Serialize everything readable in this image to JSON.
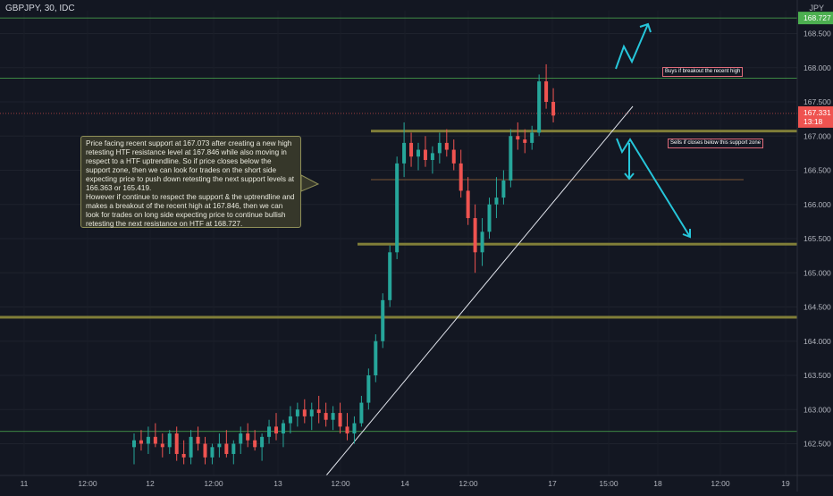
{
  "header": {
    "symbol": "GBPJPY, 30, IDC",
    "currency": "JPY"
  },
  "annotation": {
    "paragraph_1": "Price facing recent support at 167.073 after creating a new high retesting HTF resistance level at 167.846 while also moving in respect to a HTF uptrendline. So if price closes below the support zone, then we can look for trades on the short side expecting price to push down retesting the next support levels at 166.363 or 165.419.",
    "paragraph_2": "However if continue to respect the support & the uptrendline and makes a breakout of the recent high at 167.846, then we can look for trades on long side expecting price to continue bullish retesting the next resistance on HTF at 168.727."
  },
  "notes": {
    "buy": "Buys if breakout the recent high",
    "sell": "Sells if closes below this support zone"
  },
  "price_labels": {
    "resistance_label": "168.727",
    "current_price": "167.331",
    "countdown": "13:18"
  },
  "colors": {
    "background": "#131722",
    "bull": "#26a69a",
    "bear": "#ef5350",
    "accent_arrow": "#26c6da",
    "level_line": "#4caf50",
    "support_zone": "#8d8a3b",
    "price_line": "#ef5350"
  },
  "chart_data": {
    "type": "candlestick",
    "y_axis": {
      "ticks": [
        "168.500",
        "168.000",
        "167.500",
        "167.000",
        "166.500",
        "166.000",
        "165.500",
        "165.000",
        "164.500",
        "164.000",
        "163.500",
        "163.000",
        "162.500"
      ],
      "range": [
        162.2,
        168.95
      ]
    },
    "x_axis": {
      "ticks": [
        "11",
        "12:00",
        "12",
        "12:00",
        "13",
        "12:00",
        "14",
        "12:00",
        "17",
        "15:00",
        "18",
        "12:00",
        "19"
      ]
    },
    "levels": [
      {
        "name": "htf-resistance",
        "price": 168.727,
        "style": "line"
      },
      {
        "name": "recent-high-resistance",
        "price": 167.846,
        "style": "line"
      },
      {
        "name": "current-price",
        "price": 167.331,
        "style": "dotted"
      },
      {
        "name": "support",
        "price": 167.073,
        "style": "zone"
      },
      {
        "name": "support-2",
        "price": 166.363,
        "style": "thin"
      },
      {
        "name": "support-3",
        "price": 165.419,
        "style": "zone"
      },
      {
        "name": "lower-zone",
        "price": 164.35,
        "style": "zone"
      },
      {
        "name": "lower-level",
        "price": 162.68,
        "style": "line"
      }
    ],
    "trendline": {
      "from": [
        0.0,
        162.2
      ],
      "to": [
        0.78,
        167.55
      ]
    },
    "candles": [
      {
        "t": 0.0,
        "o": 162.45,
        "h": 162.65,
        "l": 162.2,
        "c": 162.55
      },
      {
        "t": 0.015,
        "o": 162.55,
        "h": 162.7,
        "l": 162.4,
        "c": 162.5
      },
      {
        "t": 0.03,
        "o": 162.5,
        "h": 162.75,
        "l": 162.35,
        "c": 162.6
      },
      {
        "t": 0.045,
        "o": 162.6,
        "h": 162.8,
        "l": 162.45,
        "c": 162.5
      },
      {
        "t": 0.06,
        "o": 162.5,
        "h": 162.65,
        "l": 162.3,
        "c": 162.45
      },
      {
        "t": 0.075,
        "o": 162.45,
        "h": 162.7,
        "l": 162.35,
        "c": 162.65
      },
      {
        "t": 0.09,
        "o": 162.65,
        "h": 162.75,
        "l": 162.25,
        "c": 162.35
      },
      {
        "t": 0.105,
        "o": 162.35,
        "h": 162.55,
        "l": 162.2,
        "c": 162.3
      },
      {
        "t": 0.12,
        "o": 162.3,
        "h": 162.7,
        "l": 162.2,
        "c": 162.6
      },
      {
        "t": 0.135,
        "o": 162.6,
        "h": 162.75,
        "l": 162.4,
        "c": 162.5
      },
      {
        "t": 0.15,
        "o": 162.5,
        "h": 162.6,
        "l": 162.2,
        "c": 162.3
      },
      {
        "t": 0.165,
        "o": 162.3,
        "h": 162.5,
        "l": 162.2,
        "c": 162.45
      },
      {
        "t": 0.18,
        "o": 162.45,
        "h": 162.65,
        "l": 162.3,
        "c": 162.5
      },
      {
        "t": 0.195,
        "o": 162.5,
        "h": 162.7,
        "l": 162.3,
        "c": 162.35
      },
      {
        "t": 0.21,
        "o": 162.35,
        "h": 162.55,
        "l": 162.2,
        "c": 162.5
      },
      {
        "t": 0.225,
        "o": 162.5,
        "h": 162.75,
        "l": 162.35,
        "c": 162.65
      },
      {
        "t": 0.24,
        "o": 162.65,
        "h": 162.8,
        "l": 162.45,
        "c": 162.55
      },
      {
        "t": 0.255,
        "o": 162.55,
        "h": 162.7,
        "l": 162.4,
        "c": 162.45
      },
      {
        "t": 0.27,
        "o": 162.45,
        "h": 162.65,
        "l": 162.25,
        "c": 162.6
      },
      {
        "t": 0.285,
        "o": 162.6,
        "h": 162.85,
        "l": 162.5,
        "c": 162.75
      },
      {
        "t": 0.3,
        "o": 162.75,
        "h": 162.95,
        "l": 162.55,
        "c": 162.65
      },
      {
        "t": 0.315,
        "o": 162.65,
        "h": 162.85,
        "l": 162.45,
        "c": 162.8
      },
      {
        "t": 0.33,
        "o": 162.8,
        "h": 163.05,
        "l": 162.65,
        "c": 162.9
      },
      {
        "t": 0.345,
        "o": 162.9,
        "h": 163.1,
        "l": 162.75,
        "c": 163.0
      },
      {
        "t": 0.36,
        "o": 163.0,
        "h": 163.15,
        "l": 162.8,
        "c": 162.9
      },
      {
        "t": 0.375,
        "o": 162.9,
        "h": 163.1,
        "l": 162.7,
        "c": 163.0
      },
      {
        "t": 0.39,
        "o": 163.0,
        "h": 163.2,
        "l": 162.8,
        "c": 162.95
      },
      {
        "t": 0.405,
        "o": 162.95,
        "h": 163.1,
        "l": 162.75,
        "c": 162.85
      },
      {
        "t": 0.42,
        "o": 162.85,
        "h": 163.05,
        "l": 162.7,
        "c": 162.95
      },
      {
        "t": 0.435,
        "o": 162.95,
        "h": 163.1,
        "l": 162.65,
        "c": 162.75
      },
      {
        "t": 0.45,
        "o": 162.75,
        "h": 162.95,
        "l": 162.55,
        "c": 162.65
      },
      {
        "t": 0.465,
        "o": 162.65,
        "h": 162.9,
        "l": 162.5,
        "c": 162.8
      },
      {
        "t": 0.48,
        "o": 162.8,
        "h": 163.2,
        "l": 162.75,
        "c": 163.1
      },
      {
        "t": 0.495,
        "o": 163.1,
        "h": 163.6,
        "l": 163.0,
        "c": 163.5
      },
      {
        "t": 0.51,
        "o": 163.5,
        "h": 164.1,
        "l": 163.4,
        "c": 164.0
      },
      {
        "t": 0.525,
        "o": 164.0,
        "h": 164.7,
        "l": 163.9,
        "c": 164.6
      },
      {
        "t": 0.54,
        "o": 164.6,
        "h": 165.4,
        "l": 164.5,
        "c": 165.3
      },
      {
        "t": 0.555,
        "o": 165.3,
        "h": 166.7,
        "l": 165.2,
        "c": 166.6
      },
      {
        "t": 0.57,
        "o": 166.6,
        "h": 167.2,
        "l": 166.4,
        "c": 166.9
      },
      {
        "t": 0.585,
        "o": 166.9,
        "h": 167.05,
        "l": 166.55,
        "c": 166.7
      },
      {
        "t": 0.6,
        "o": 166.7,
        "h": 166.9,
        "l": 166.5,
        "c": 166.8
      },
      {
        "t": 0.615,
        "o": 166.8,
        "h": 167.0,
        "l": 166.55,
        "c": 166.65
      },
      {
        "t": 0.63,
        "o": 166.65,
        "h": 166.85,
        "l": 166.45,
        "c": 166.75
      },
      {
        "t": 0.645,
        "o": 166.75,
        "h": 167.05,
        "l": 166.6,
        "c": 166.9
      },
      {
        "t": 0.66,
        "o": 166.9,
        "h": 167.1,
        "l": 166.7,
        "c": 166.8
      },
      {
        "t": 0.675,
        "o": 166.8,
        "h": 166.95,
        "l": 166.5,
        "c": 166.6
      },
      {
        "t": 0.69,
        "o": 166.6,
        "h": 166.8,
        "l": 166.1,
        "c": 166.2
      },
      {
        "t": 0.705,
        "o": 166.2,
        "h": 166.4,
        "l": 165.7,
        "c": 165.8
      },
      {
        "t": 0.72,
        "o": 165.8,
        "h": 166.0,
        "l": 165.0,
        "c": 165.3
      },
      {
        "t": 0.735,
        "o": 165.3,
        "h": 165.8,
        "l": 165.1,
        "c": 165.6
      },
      {
        "t": 0.75,
        "o": 165.6,
        "h": 166.1,
        "l": 165.5,
        "c": 166.0
      },
      {
        "t": 0.765,
        "o": 166.0,
        "h": 166.4,
        "l": 165.8,
        "c": 166.1
      },
      {
        "t": 0.78,
        "o": 166.1,
        "h": 166.5,
        "l": 166.0,
        "c": 166.35
      },
      {
        "t": 0.795,
        "o": 166.35,
        "h": 167.1,
        "l": 166.25,
        "c": 167.0
      },
      {
        "t": 0.81,
        "o": 167.0,
        "h": 167.2,
        "l": 166.8,
        "c": 166.95
      },
      {
        "t": 0.825,
        "o": 166.95,
        "h": 167.1,
        "l": 166.75,
        "c": 166.9
      },
      {
        "t": 0.84,
        "o": 166.9,
        "h": 167.15,
        "l": 166.8,
        "c": 167.05
      },
      {
        "t": 0.855,
        "o": 167.05,
        "h": 167.9,
        "l": 167.0,
        "c": 167.8
      },
      {
        "t": 0.87,
        "o": 167.8,
        "h": 168.05,
        "l": 167.4,
        "c": 167.5
      },
      {
        "t": 0.885,
        "o": 167.5,
        "h": 167.7,
        "l": 167.2,
        "c": 167.3
      }
    ]
  }
}
